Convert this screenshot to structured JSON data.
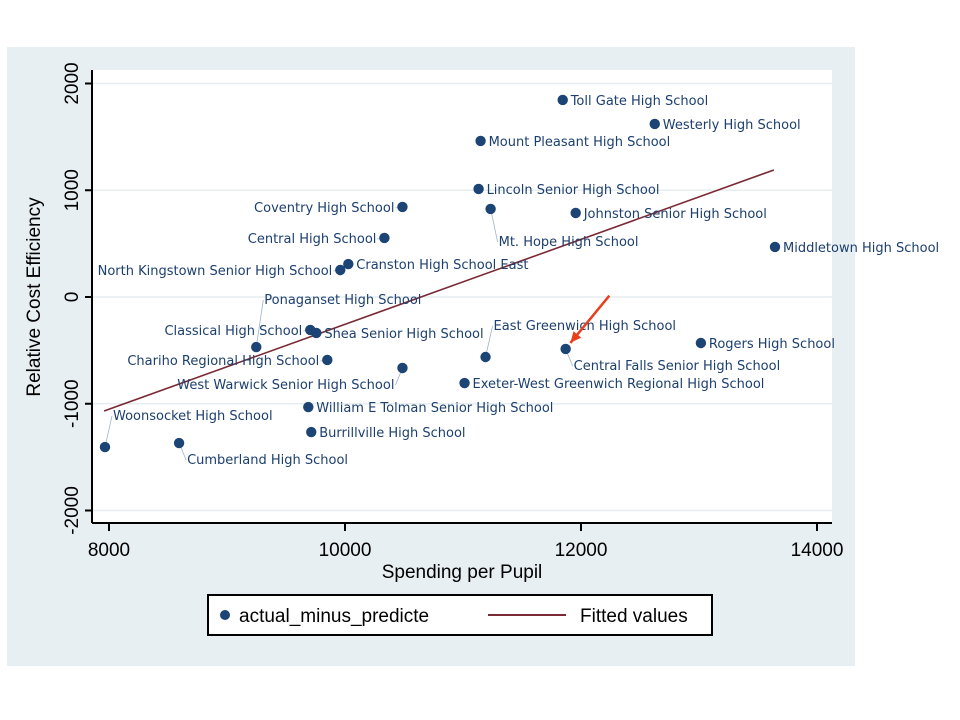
{
  "chart_data": {
    "type": "scatter",
    "title": "",
    "xlabel": "Spending per Pupil",
    "ylabel": "Relative Cost Efficiency",
    "xlim": [
      7900,
      14150
    ],
    "ylim": [
      -2150,
      2130
    ],
    "xticks": [
      8000,
      10000,
      12000,
      14000
    ],
    "yticks": [
      -2000,
      -1000,
      0,
      1000,
      2000
    ],
    "xtick_labels": [
      "8000",
      "10000",
      "12000",
      "14000"
    ],
    "ytick_labels": [
      "-2000",
      "-1000",
      "0",
      "1000",
      "2000"
    ],
    "grid": "horizontal",
    "legend_position": "bottom",
    "colors": {
      "points": "#1c4474",
      "fit_line": "#7a2a35",
      "arrow": "#e8401c",
      "background": "#e8eff2",
      "plot": "#ffffff"
    },
    "series": [
      {
        "name": "actual_minus_predicte",
        "kind": "scatter",
        "points": [
          {
            "label": "Toll Gate High School",
            "x": 11845,
            "y": 1846
          },
          {
            "label": "Westerly High School",
            "x": 12625,
            "y": 1621
          },
          {
            "label": "Mount Pleasant High School",
            "x": 11149,
            "y": 1462
          },
          {
            "label": "Lincoln Senior High School",
            "x": 11132,
            "y": 1012
          },
          {
            "label": "Coventry High School",
            "x": 10487,
            "y": 844
          },
          {
            "label": "Mt. Hope High School",
            "x": 11234,
            "y": 825
          },
          {
            "label": "Johnston Senior High School",
            "x": 11955,
            "y": 787
          },
          {
            "label": "Central High School",
            "x": 10334,
            "y": 553
          },
          {
            "label": "Middletown High School",
            "x": 13644,
            "y": 469
          },
          {
            "label": "Cranston High School East",
            "x": 10028,
            "y": 309
          },
          {
            "label": "North Kingstown Senior High School",
            "x": 9960,
            "y": 253
          },
          {
            "label": "Classical High School",
            "x": 9706,
            "y": -309
          },
          {
            "label": "Shea Senior High School",
            "x": 9757,
            "y": -337
          },
          {
            "label": "Ponaganset High School",
            "x": 9248,
            "y": -469
          },
          {
            "label": "Chariho Regional High School",
            "x": 9850,
            "y": -590
          },
          {
            "label": "East Greenwich High School",
            "x": 11191,
            "y": -562
          },
          {
            "label": "West Warwick Senior High School",
            "x": 10487,
            "y": -665
          },
          {
            "label": "Central Falls Senior High School",
            "x": 11870,
            "y": -487
          },
          {
            "label": "Rogers High School",
            "x": 13016,
            "y": -431
          },
          {
            "label": "Exeter-West Greenwich Regional High School",
            "x": 11013,
            "y": -806
          },
          {
            "label": "William E Tolman Senior High School",
            "x": 9689,
            "y": -1031
          },
          {
            "label": "Burrillville High School",
            "x": 9714,
            "y": -1265
          },
          {
            "label": "Woonsocket High School",
            "x": 7966,
            "y": -1406
          },
          {
            "label": "Cumberland High School",
            "x": 8594,
            "y": -1368
          }
        ]
      },
      {
        "name": "Fitted values",
        "kind": "line",
        "points": [
          {
            "x": 7958,
            "y": -1068
          },
          {
            "x": 13635,
            "y": 1190
          }
        ]
      }
    ],
    "annotations": [
      {
        "type": "arrow",
        "target": "Central Falls Senior High School",
        "from": {
          "x": 12240,
          "y": 12
        },
        "to": {
          "x": 11910,
          "y": -430
        }
      }
    ]
  }
}
